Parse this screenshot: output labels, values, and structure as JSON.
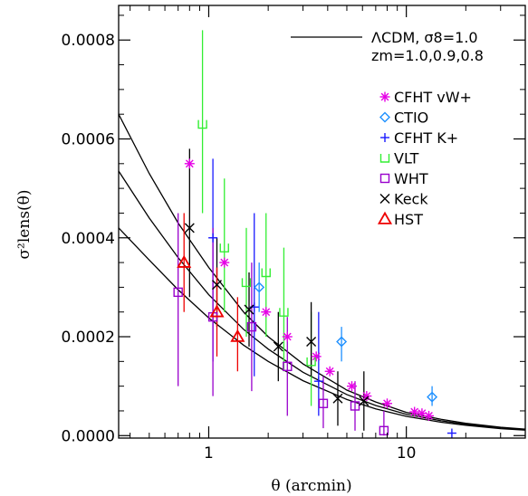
{
  "chart_data": {
    "type": "scatter",
    "xlabel": "θ (arcmin)",
    "ylabel": "σ²lens(θ)",
    "xscale": "log",
    "xlim": [
      0.35,
      40
    ],
    "ylim": [
      -5e-06,
      0.00087
    ],
    "xticks": [
      {
        "v": 1,
        "label": "1"
      },
      {
        "v": 10,
        "label": "10"
      }
    ],
    "yticks": [
      {
        "v": 0.0,
        "label": "0.0000"
      },
      {
        "v": 0.0002,
        "label": "0.0002"
      },
      {
        "v": 0.0004,
        "label": "0.0004"
      },
      {
        "v": 0.0006,
        "label": "0.0006"
      },
      {
        "v": 0.0008,
        "label": "0.0008"
      }
    ],
    "grid": false,
    "legend_position": "top-right",
    "model_legend": {
      "line1": "ΛCDM,  σ8=1.0",
      "line2": "zm=1.0,0.9,0.8"
    },
    "model_curves": [
      {
        "x": [
          0.35,
          0.5,
          0.7,
          1.0,
          1.5,
          2.0,
          3.0,
          5.0,
          7.0,
          10.0,
          15.0,
          20.0,
          30.0,
          40.0
        ],
        "y": [
          0.00065,
          0.00053,
          0.00043,
          0.00034,
          0.00025,
          0.0002,
          0.000145,
          9.2e-05,
          6.8e-05,
          4.7e-05,
          3.3e-05,
          2.5e-05,
          1.7e-05,
          1.3e-05
        ]
      },
      {
        "x": [
          0.35,
          0.5,
          0.7,
          1.0,
          1.5,
          2.0,
          3.0,
          5.0,
          7.0,
          10.0,
          15.0,
          20.0,
          30.0,
          40.0
        ],
        "y": [
          0.000535,
          0.00044,
          0.00036,
          0.000285,
          0.000215,
          0.000175,
          0.000128,
          8.3e-05,
          6.1e-05,
          4.3e-05,
          3e-05,
          2.3e-05,
          1.6e-05,
          1.2e-05
        ]
      },
      {
        "x": [
          0.35,
          0.5,
          0.7,
          1.0,
          1.5,
          2.0,
          3.0,
          5.0,
          7.0,
          10.0,
          15.0,
          20.0,
          30.0,
          40.0
        ],
        "y": [
          0.00042,
          0.000355,
          0.000295,
          0.000238,
          0.000183,
          0.00015,
          0.000111,
          7.3e-05,
          5.4e-05,
          3.9e-05,
          2.7e-05,
          2.1e-05,
          1.4e-05,
          1.1e-05
        ]
      }
    ],
    "series": [
      {
        "name": "CFHT vW+",
        "marker": "asterisk",
        "color": "#e600e6",
        "points": [
          {
            "x": 0.8,
            "y": 0.00055,
            "lo": 0.00055,
            "hi": 0.00055
          },
          {
            "x": 1.2,
            "y": 0.00035,
            "lo": 0.00035,
            "hi": 0.00035
          },
          {
            "x": 1.95,
            "y": 0.00025,
            "lo": 0.00025,
            "hi": 0.00025
          },
          {
            "x": 2.5,
            "y": 0.0002,
            "lo": 0.0002,
            "hi": 0.0002
          },
          {
            "x": 3.5,
            "y": 0.00016,
            "lo": 0.00016,
            "hi": 0.00016
          },
          {
            "x": 4.1,
            "y": 0.00013,
            "lo": 0.00013,
            "hi": 0.00013
          },
          {
            "x": 5.3,
            "y": 0.0001,
            "lo": 0.0001,
            "hi": 0.0001
          },
          {
            "x": 6.3,
            "y": 8e-05,
            "lo": 8e-05,
            "hi": 8e-05
          },
          {
            "x": 8.0,
            "y": 6.5e-05,
            "lo": 6.5e-05,
            "hi": 6.5e-05
          },
          {
            "x": 11.0,
            "y": 4.8e-05,
            "lo": 4.8e-05,
            "hi": 4.8e-05
          },
          {
            "x": 12.0,
            "y": 4.5e-05,
            "lo": 4.5e-05,
            "hi": 4.5e-05
          },
          {
            "x": 13.0,
            "y": 4e-05,
            "lo": 4e-05,
            "hi": 4e-05
          }
        ]
      },
      {
        "name": "CTIO",
        "marker": "diamond",
        "color": "#1e90ff",
        "points": [
          {
            "x": 1.8,
            "y": 0.0003,
            "lo": 0.00025,
            "hi": 0.00035
          },
          {
            "x": 4.7,
            "y": 0.00019,
            "lo": 0.00015,
            "hi": 0.00022
          },
          {
            "x": 13.5,
            "y": 7.8e-05,
            "lo": 6e-05,
            "hi": 0.0001
          }
        ]
      },
      {
        "name": "CFHT K+",
        "marker": "plus",
        "color": "#1a1aff",
        "points": [
          {
            "x": 1.05,
            "y": 0.0004,
            "lo": 0.00015,
            "hi": 0.00056
          },
          {
            "x": 1.7,
            "y": 0.00026,
            "lo": 0.00012,
            "hi": 0.00045
          },
          {
            "x": 3.6,
            "y": 0.00011,
            "lo": 4e-05,
            "hi": 0.00025
          },
          {
            "x": 17.0,
            "y": 5e-06,
            "lo": 5e-06,
            "hi": 5e-06
          }
        ]
      },
      {
        "name": "VLT",
        "marker": "square-open-top",
        "color": "#33ee33",
        "points": [
          {
            "x": 0.93,
            "y": 0.00063,
            "lo": 0.00045,
            "hi": 0.00082
          },
          {
            "x": 1.2,
            "y": 0.00038,
            "lo": 0.00025,
            "hi": 0.00052
          },
          {
            "x": 1.55,
            "y": 0.00031,
            "lo": 0.0002,
            "hi": 0.00042
          },
          {
            "x": 1.95,
            "y": 0.00033,
            "lo": 0.0002,
            "hi": 0.00045
          },
          {
            "x": 2.4,
            "y": 0.00025,
            "lo": 0.00013,
            "hi": 0.00038
          },
          {
            "x": 3.3,
            "y": 0.00015,
            "lo": 6e-05,
            "hi": 0.00025
          }
        ]
      },
      {
        "name": "WHT",
        "marker": "square",
        "color": "#9900cc",
        "points": [
          {
            "x": 0.7,
            "y": 0.00029,
            "lo": 0.0001,
            "hi": 0.00045
          },
          {
            "x": 1.05,
            "y": 0.00024,
            "lo": 8e-05,
            "hi": 0.00042
          },
          {
            "x": 1.65,
            "y": 0.00022,
            "lo": 9e-05,
            "hi": 0.00035
          },
          {
            "x": 2.5,
            "y": 0.00014,
            "lo": 4e-05,
            "hi": 0.00024
          },
          {
            "x": 3.8,
            "y": 6.5e-05,
            "lo": 1.5e-05,
            "hi": 0.00012
          },
          {
            "x": 5.5,
            "y": 6e-05,
            "lo": 1e-05,
            "hi": 0.00011
          },
          {
            "x": 7.7,
            "y": 1e-05,
            "lo": 0.0,
            "hi": 5e-05
          }
        ]
      },
      {
        "name": "Keck",
        "marker": "cross",
        "color": "#000000",
        "points": [
          {
            "x": 0.8,
            "y": 0.00042,
            "lo": 0.00028,
            "hi": 0.00058
          },
          {
            "x": 1.1,
            "y": 0.000305,
            "lo": 0.00022,
            "hi": 0.0004
          },
          {
            "x": 1.6,
            "y": 0.000255,
            "lo": 0.00018,
            "hi": 0.00033
          },
          {
            "x": 2.25,
            "y": 0.00018,
            "lo": 0.00011,
            "hi": 0.00025
          },
          {
            "x": 3.3,
            "y": 0.00019,
            "lo": 0.00012,
            "hi": 0.00027
          },
          {
            "x": 4.5,
            "y": 7.5e-05,
            "lo": 2e-05,
            "hi": 0.00013
          },
          {
            "x": 6.1,
            "y": 7e-05,
            "lo": 1e-05,
            "hi": 0.00013
          }
        ]
      },
      {
        "name": "HST",
        "marker": "triangle",
        "color": "#ee0000",
        "points": [
          {
            "x": 0.75,
            "y": 0.00035,
            "lo": 0.00025,
            "hi": 0.00045
          },
          {
            "x": 1.1,
            "y": 0.00025,
            "lo": 0.00016,
            "hi": 0.00034
          },
          {
            "x": 1.4,
            "y": 0.0002,
            "lo": 0.00013,
            "hi": 0.00028
          }
        ]
      }
    ]
  }
}
